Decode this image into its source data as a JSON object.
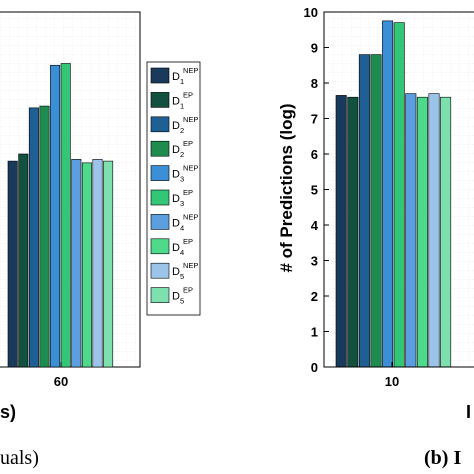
{
  "chart_data": [
    {
      "type": "bar",
      "categories": [
        "60"
      ],
      "series": [
        {
          "name": "D1 NEP",
          "sub": "1",
          "sup": "NEP",
          "values": [
            5.8
          ]
        },
        {
          "name": "D1 EP",
          "sub": "1",
          "sup": "EP",
          "values": [
            6.0
          ]
        },
        {
          "name": "D2 NEP",
          "sub": "2",
          "sup": "NEP",
          "values": [
            7.3
          ]
        },
        {
          "name": "D2 EP",
          "sub": "2",
          "sup": "EP",
          "values": [
            7.35
          ]
        },
        {
          "name": "D3 NEP",
          "sub": "3",
          "sup": "NEP",
          "values": [
            8.5
          ]
        },
        {
          "name": "D3 EP",
          "sub": "3",
          "sup": "EP",
          "values": [
            8.55
          ]
        },
        {
          "name": "D4 NEP",
          "sub": "4",
          "sup": "NEP",
          "values": [
            5.85
          ]
        },
        {
          "name": "D4 EP",
          "sub": "4",
          "sup": "EP",
          "values": [
            5.75
          ]
        },
        {
          "name": "D5 NEP",
          "sub": "5",
          "sup": "NEP",
          "values": [
            5.85
          ]
        },
        {
          "name": "D5 EP",
          "sub": "5",
          "sup": "EP",
          "values": [
            5.8
          ]
        }
      ],
      "xlabel_fragment": "s)",
      "caption_fragment": "uals)",
      "legend_placement": "right"
    },
    {
      "type": "bar",
      "categories": [
        "10"
      ],
      "series": [
        {
          "name": "D1 NEP",
          "values": [
            7.65
          ]
        },
        {
          "name": "D1 EP",
          "values": [
            7.6
          ]
        },
        {
          "name": "D2 NEP",
          "values": [
            8.8
          ]
        },
        {
          "name": "D2 EP",
          "values": [
            8.8
          ]
        },
        {
          "name": "D3 NEP",
          "values": [
            9.75
          ]
        },
        {
          "name": "D3 EP",
          "values": [
            9.7
          ]
        },
        {
          "name": "D4 NEP",
          "values": [
            7.7
          ]
        },
        {
          "name": "D4 EP",
          "values": [
            7.6
          ]
        },
        {
          "name": "D5 NEP",
          "values": [
            7.7
          ]
        },
        {
          "name": "D5 EP",
          "values": [
            7.6
          ]
        }
      ],
      "ylabel": "# of Predictions (log)",
      "ylim": [
        0,
        10
      ],
      "yticks": [
        "0",
        "1",
        "2",
        "3",
        "4",
        "5",
        "6",
        "7",
        "8",
        "9",
        "10"
      ],
      "caption_fragment": "(b) I",
      "xlabel_fragment": "I"
    }
  ],
  "colors": [
    "#1a3a5c",
    "#12503f",
    "#1f5f93",
    "#1e8c4f",
    "#3a8fd6",
    "#33c677",
    "#5c9fe0",
    "#4fd98a",
    "#9cc4ea",
    "#7ee0ae"
  ]
}
